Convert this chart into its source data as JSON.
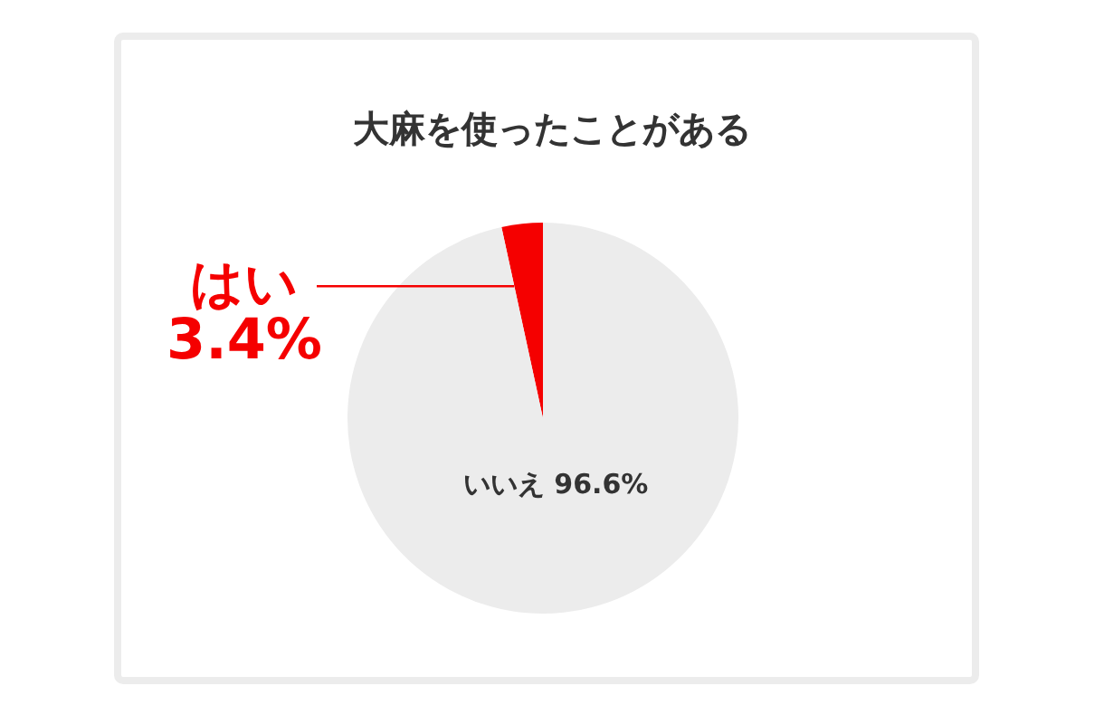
{
  "chart_data": {
    "type": "pie",
    "title": "大麻を使ったことがある",
    "categories": [
      "はい",
      "いいえ"
    ],
    "values": [
      3.4,
      96.6
    ],
    "colors": [
      "#f50000",
      "#ececec"
    ],
    "value_labels": [
      "3.4%",
      "96.6%"
    ],
    "legend": false
  }
}
